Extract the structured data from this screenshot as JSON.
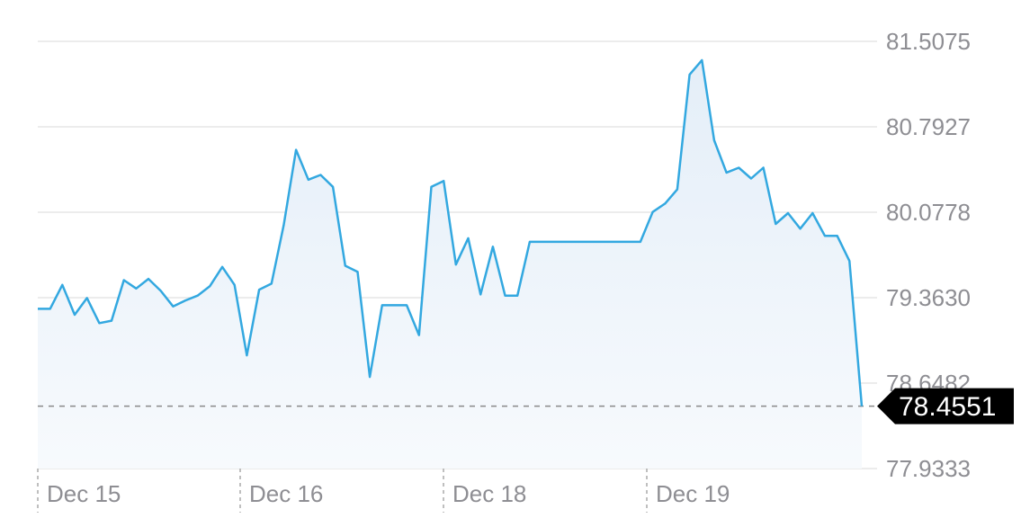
{
  "chart_data": {
    "type": "area",
    "yticks": [
      "81.5075",
      "80.7927",
      "80.0778",
      "79.3630",
      "78.6482",
      "77.9333"
    ],
    "ylim": [
      77.9333,
      81.5075
    ],
    "xticks": [
      "Dec 15",
      "Dec 16",
      "Dec 18",
      "Dec 19"
    ],
    "current_price": 78.4551,
    "current_label": "78.4551",
    "grid": true,
    "colors": {
      "line": "#33a8e0",
      "fill_top": "#e4eef8",
      "fill_bottom": "#f7fafd",
      "grid": "#e6e6e6",
      "tick": "#8e8e93",
      "dashed": "#888888",
      "badge": "#000000"
    },
    "series": [
      {
        "values": [
          79.27,
          79.27,
          79.47,
          79.22,
          79.36,
          79.15,
          79.17,
          79.51,
          79.44,
          79.52,
          79.42,
          79.29,
          79.34,
          79.38,
          79.46,
          79.62,
          79.47,
          78.88,
          79.43,
          79.48,
          79.97,
          80.6,
          80.35,
          80.39,
          80.29,
          79.63,
          79.58,
          78.7,
          79.3,
          79.3,
          79.3,
          79.05,
          80.29,
          80.34,
          79.64,
          79.86,
          79.39,
          79.79,
          79.38,
          79.38,
          79.83,
          79.83,
          79.83,
          79.83,
          79.83,
          79.83,
          79.83,
          79.83,
          79.83,
          79.83,
          80.08,
          80.15,
          80.27,
          81.23,
          81.35,
          80.68,
          80.41,
          80.45,
          80.36,
          80.45,
          79.98,
          80.07,
          79.94,
          80.07,
          79.88,
          79.88,
          79.67,
          78.4551
        ]
      }
    ]
  }
}
